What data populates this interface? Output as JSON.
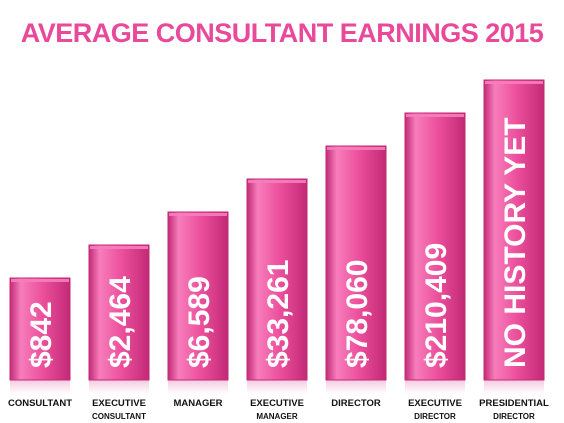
{
  "colors": {
    "bar": "#ec4f9c",
    "bar_light": "#f77dbb",
    "bar_dark": "#c22a76",
    "title": "#e8499a",
    "text": "#111111",
    "value_text": "#ffffff"
  },
  "chart_data": {
    "type": "bar",
    "title": "AVERAGE CONSULTANT EARNINGS 2015",
    "xlabel": "",
    "ylabel": "",
    "grid": false,
    "legend": "none",
    "categories": [
      [
        "CONSULTANT"
      ],
      [
        "EXECUTIVE",
        "CONSULTANT"
      ],
      [
        "MANAGER"
      ],
      [
        "EXECUTIVE",
        "MANAGER"
      ],
      [
        "DIRECTOR"
      ],
      [
        "EXECUTIVE",
        "DIRECTOR"
      ],
      [
        "PRESIDENTIAL",
        "DIRECTOR"
      ]
    ],
    "values": [
      842,
      2464,
      6589,
      33261,
      78060,
      210409,
      null
    ],
    "labels": [
      "$842",
      "$2,464",
      "$6,589",
      "$33,261",
      "$78,060",
      "$210,409",
      "NO HISTORY YET"
    ],
    "level": [
      1,
      2,
      3,
      4,
      5,
      6,
      7
    ]
  }
}
